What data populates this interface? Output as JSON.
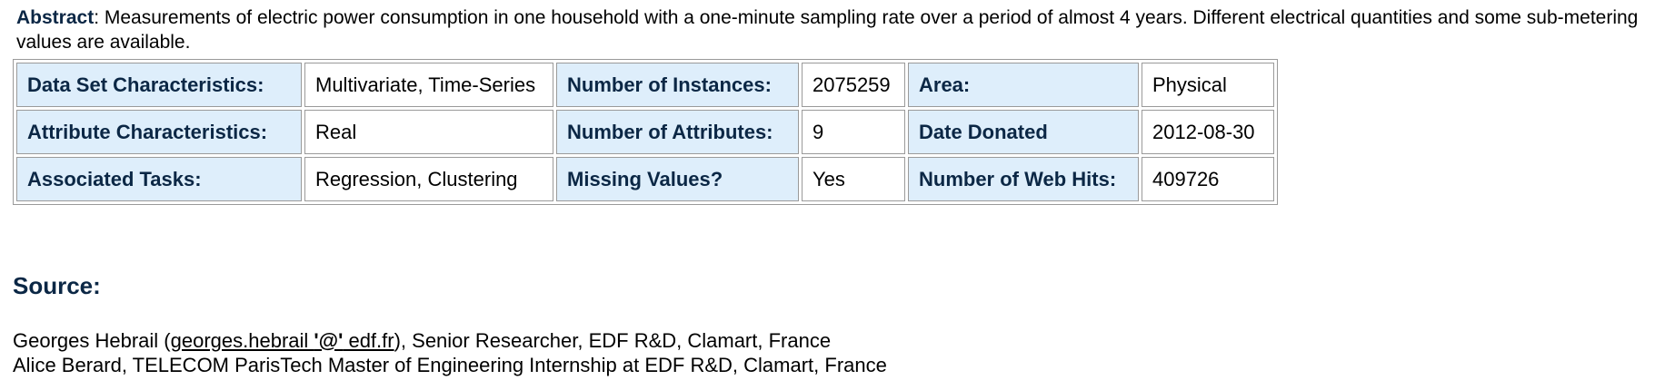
{
  "abstract": {
    "label": "Abstract",
    "separator": ": ",
    "text": "Measurements of electric power consumption in one household with a one-minute sampling rate over a period of almost 4 years. Different electrical quantities and some sub-metering values are available."
  },
  "characteristics": [
    [
      {
        "key": "Data Set Characteristics:",
        "value": "Multivariate, Time-Series"
      },
      {
        "key": "Number of Instances:",
        "value": "2075259"
      },
      {
        "key": "Area:",
        "value": "Physical"
      }
    ],
    [
      {
        "key": "Attribute Characteristics:",
        "value": "Real"
      },
      {
        "key": "Number of Attributes:",
        "value": "9"
      },
      {
        "key": "Date Donated",
        "value": "2012-08-30"
      }
    ],
    [
      {
        "key": "Associated Tasks:",
        "value": "Regression, Clustering"
      },
      {
        "key": "Missing Values?",
        "value": "Yes"
      },
      {
        "key": "Number of Web Hits:",
        "value": "409726"
      }
    ]
  ],
  "source": {
    "heading": "Source:",
    "line1": {
      "before": "Georges Hebrail (",
      "link_user": "georges.hebrail ",
      "link_at": "'@'",
      "link_domain": " edf.fr",
      "after": "), Senior Researcher, EDF R&D, Clamart, France"
    },
    "line2": "Alice Berard, TELECOM ParisTech Master of Engineering Internship at EDF R&D, Clamart, France"
  }
}
